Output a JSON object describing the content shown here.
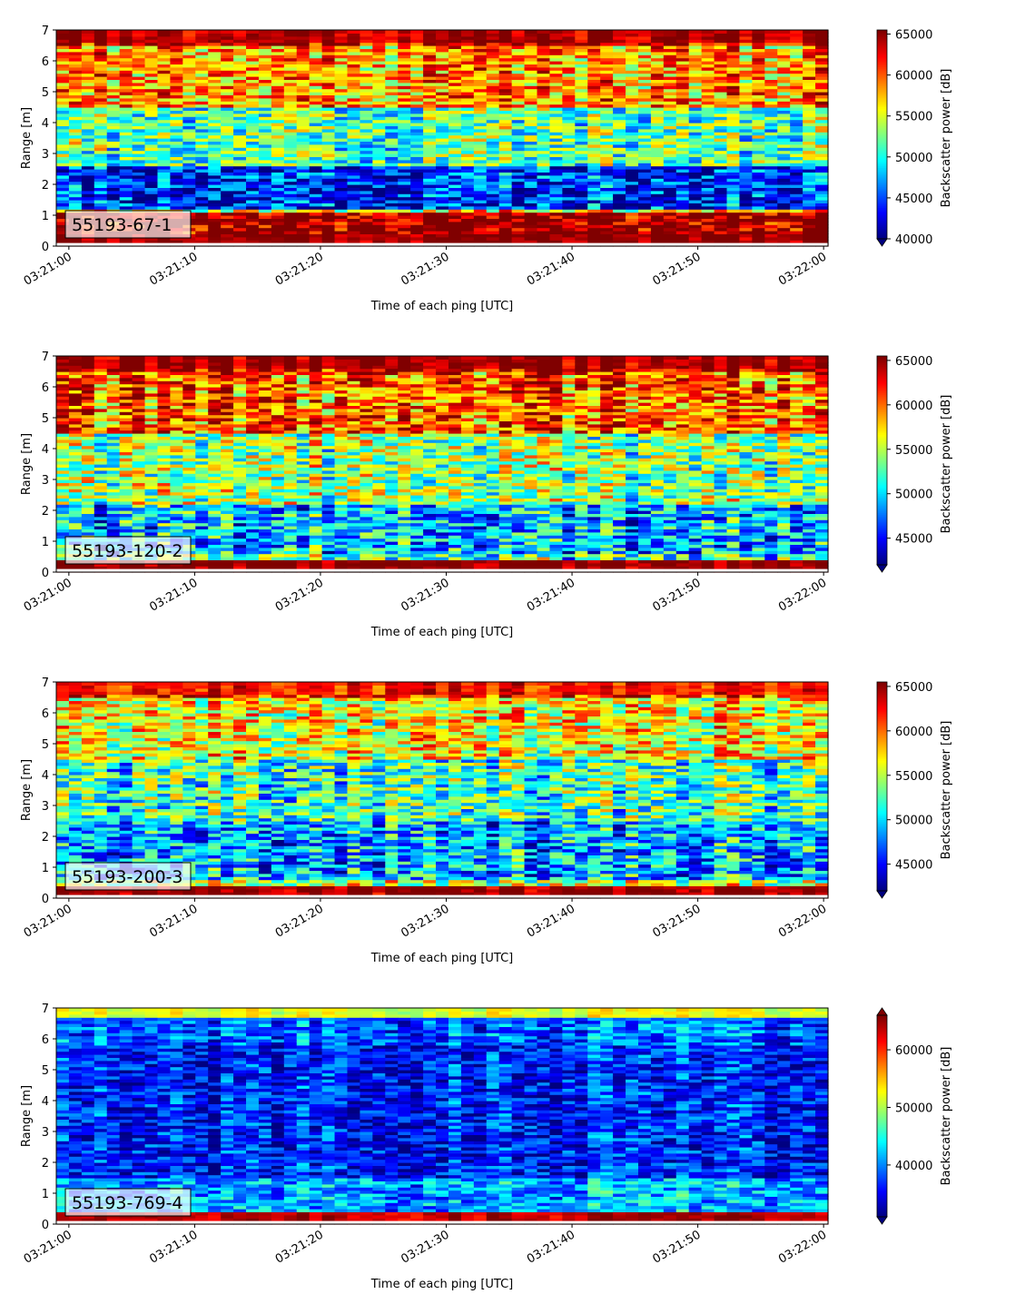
{
  "chart_data": [
    {
      "type": "heatmap",
      "panel_label": "55193-67-1",
      "xlabel": "Time of each ping [UTC]",
      "ylabel": "Range [m]",
      "xticks": [
        "03:21:00",
        "03:21:10",
        "03:21:20",
        "03:21:30",
        "03:21:40",
        "03:21:50",
        "03:22:00"
      ],
      "xlim": [
        "03:21:00",
        "03:22:00"
      ],
      "yticks": [
        "0",
        "1",
        "2",
        "3",
        "4",
        "5",
        "6",
        "7"
      ],
      "ylim": [
        0,
        7
      ],
      "colorbar": {
        "label": "Backscatter power [dB]",
        "ticks": [
          "40000",
          "45000",
          "50000",
          "55000",
          "60000",
          "65000"
        ],
        "range": [
          40000,
          65500
        ],
        "extend": "min"
      },
      "bands": [
        {
          "range_m": [
            0.2,
            1.1
          ],
          "value": 65500
        },
        {
          "range_m": [
            1.1,
            1.2
          ],
          "value": 56000
        },
        {
          "range_m": [
            1.2,
            2.6
          ],
          "value": 44000
        },
        {
          "range_m": [
            2.6,
            4.5
          ],
          "value": 52000
        },
        {
          "range_m": [
            4.5,
            6.5
          ],
          "value": 58500
        },
        {
          "range_m": [
            6.5,
            7.0
          ],
          "value": 64500
        }
      ],
      "colormap": "jet"
    },
    {
      "type": "heatmap",
      "panel_label": "55193-120-2",
      "xlabel": "Time of each ping [UTC]",
      "ylabel": "Range [m]",
      "xticks": [
        "03:21:00",
        "03:21:10",
        "03:21:20",
        "03:21:30",
        "03:21:40",
        "03:21:50",
        "03:22:00"
      ],
      "xlim": [
        "03:21:00",
        "03:22:00"
      ],
      "yticks": [
        "0",
        "1",
        "2",
        "3",
        "4",
        "5",
        "6",
        "7"
      ],
      "ylim": [
        0,
        7
      ],
      "colorbar": {
        "label": "Backscatter power [dB]",
        "ticks": [
          "45000",
          "50000",
          "55000",
          "60000",
          "65000"
        ],
        "range": [
          42000,
          65500
        ],
        "extend": "min"
      },
      "bands": [
        {
          "range_m": [
            0.1,
            0.4
          ],
          "value": 65500
        },
        {
          "range_m": [
            0.4,
            0.6
          ],
          "value": 52000
        },
        {
          "range_m": [
            0.6,
            2.2
          ],
          "value": 49000
        },
        {
          "range_m": [
            2.2,
            4.5
          ],
          "value": 54000
        },
        {
          "range_m": [
            4.5,
            6.5
          ],
          "value": 60000
        },
        {
          "range_m": [
            6.5,
            7.0
          ],
          "value": 64500
        }
      ],
      "colormap": "jet"
    },
    {
      "type": "heatmap",
      "panel_label": "55193-200-3",
      "xlabel": "Time of each ping [UTC]",
      "ylabel": "Range [m]",
      "xticks": [
        "03:21:00",
        "03:21:10",
        "03:21:20",
        "03:21:30",
        "03:21:40",
        "03:21:50",
        "03:22:00"
      ],
      "xlim": [
        "03:21:00",
        "03:22:00"
      ],
      "yticks": [
        "0",
        "1",
        "2",
        "3",
        "4",
        "5",
        "6",
        "7"
      ],
      "ylim": [
        0,
        7
      ],
      "colorbar": {
        "label": "Backscatter power [dB]",
        "ticks": [
          "45000",
          "50000",
          "55000",
          "60000",
          "65000"
        ],
        "range": [
          42000,
          65500
        ],
        "extend": "min"
      },
      "bands": [
        {
          "range_m": [
            0.1,
            0.4
          ],
          "value": 65000
        },
        {
          "range_m": [
            0.4,
            0.6
          ],
          "value": 55000
        },
        {
          "range_m": [
            0.6,
            2.5
          ],
          "value": 48500
        },
        {
          "range_m": [
            2.5,
            4.5
          ],
          "value": 52000
        },
        {
          "range_m": [
            4.5,
            6.5
          ],
          "value": 56500
        },
        {
          "range_m": [
            6.5,
            7.0
          ],
          "value": 62000
        }
      ],
      "colormap": "jet"
    },
    {
      "type": "heatmap",
      "panel_label": "55193-769-4",
      "xlabel": "Time of each ping [UTC]",
      "ylabel": "Range [m]",
      "xticks": [
        "03:21:00",
        "03:21:10",
        "03:21:20",
        "03:21:30",
        "03:21:40",
        "03:21:50",
        "03:22:00"
      ],
      "xlim": [
        "03:21:00",
        "03:22:00"
      ],
      "yticks": [
        "0",
        "1",
        "2",
        "3",
        "4",
        "5",
        "6",
        "7"
      ],
      "ylim": [
        0,
        7
      ],
      "colorbar": {
        "label": "Backscatter power [dB]",
        "ticks": [
          "40000",
          "50000",
          "60000"
        ],
        "range": [
          31000,
          66000
        ],
        "extend": "both"
      },
      "bands": [
        {
          "range_m": [
            0.1,
            0.4
          ],
          "value": 64000
        },
        {
          "range_m": [
            0.4,
            1.5
          ],
          "value": 41000
        },
        {
          "range_m": [
            1.5,
            5.8
          ],
          "value": 36000
        },
        {
          "range_m": [
            5.8,
            6.7
          ],
          "value": 38500
        },
        {
          "range_m": [
            6.7,
            7.0
          ],
          "value": 52000
        }
      ],
      "colormap": "jet"
    }
  ]
}
